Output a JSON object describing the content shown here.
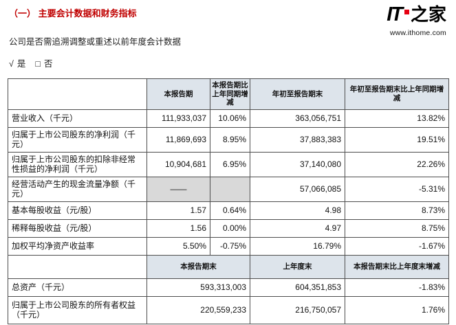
{
  "page": {
    "title": "（一） 主要会计数据和财务指标",
    "question": "公司是否需追溯调整或重述以前年度会计数据",
    "yes_mark": "√",
    "yes_label": "是",
    "no_mark": "□",
    "no_label": "否"
  },
  "logo": {
    "it": "IT",
    "cn": "之家",
    "url": "www.ithome.com"
  },
  "table": {
    "header1": [
      "本报告期",
      "本报告期比上年同期增减",
      "年初至报告期末",
      "年初至报告期末比上年同期增减"
    ],
    "rows1": [
      {
        "label": "营业收入（千元）",
        "v": [
          "111,933,037",
          "10.06%",
          "363,056,751",
          "13.82%"
        ]
      },
      {
        "label": "归属于上市公司股东的净利润（千元）",
        "v": [
          "11,869,693",
          "8.95%",
          "37,883,383",
          "19.51%"
        ]
      },
      {
        "label": "归属于上市公司股东的扣除非经常性损益的净利润（千元）",
        "v": [
          "10,904,681",
          "6.95%",
          "37,140,080",
          "22.26%"
        ]
      },
      {
        "label": "经营活动产生的现金流量净额（千元）",
        "v": [
          "——",
          "",
          "57,066,085",
          "-5.31%"
        ]
      },
      {
        "label": "基本每股收益（元/股）",
        "v": [
          "1.57",
          "0.64%",
          "4.98",
          "8.73%"
        ]
      },
      {
        "label": "稀释每股收益（元/股）",
        "v": [
          "1.56",
          "0.00%",
          "4.97",
          "8.75%"
        ]
      },
      {
        "label": "加权平均净资产收益率",
        "v": [
          "5.50%",
          "-0.75%",
          "16.79%",
          "-1.67%"
        ]
      }
    ],
    "header2": [
      "本报告期末",
      "上年度末",
      "本报告期末比上年度末增减"
    ],
    "rows2": [
      {
        "label": "总资产（千元）",
        "v": [
          "593,313,003",
          "604,351,853",
          "-1.83%"
        ]
      },
      {
        "label": "归属于上市公司股东的所有者权益（千元）",
        "v": [
          "220,559,233",
          "216,750,057",
          "1.76%"
        ]
      }
    ]
  },
  "colors": {
    "title_red": "#c00000",
    "header_bg": "#dde4eb",
    "shaded_cell": "#d9d9d9",
    "logo_red": "#e60012",
    "border": "#4d4d4d"
  }
}
